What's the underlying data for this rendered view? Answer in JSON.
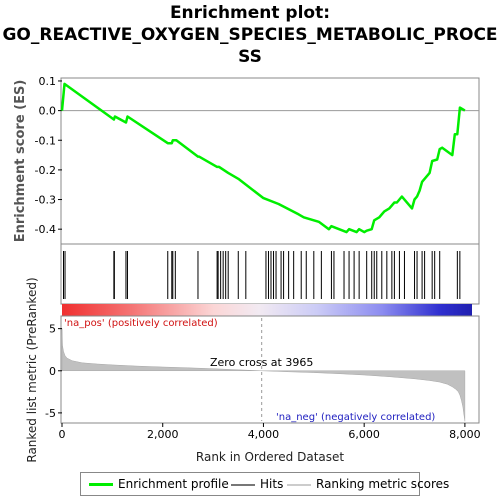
{
  "chart_data": {
    "type": "line",
    "title_lines": [
      "Enrichment plot:",
      "GO_REACTIVE_OXYGEN_SPECIES_METABOLIC_PROCE",
      "SS"
    ],
    "es_panel": {
      "ylabel": "Enrichment score (ES)",
      "ylim": [
        -0.45,
        0.11
      ],
      "yticks": [
        0.1,
        0.0,
        -0.1,
        -0.2,
        -0.3,
        -0.4
      ],
      "ytick_labels": [
        "0.1",
        "0.0",
        "-0.1",
        "-0.2",
        "-0.3",
        "-0.4"
      ],
      "series": [
        {
          "name": "Enrichment profile",
          "color": "#00ee00",
          "x": [
            0,
            50,
            1030,
            1050,
            1270,
            1300,
            2100,
            2180,
            2200,
            2270,
            2700,
            2720,
            3080,
            3120,
            3300,
            3500,
            4000,
            4300,
            4700,
            4800,
            5100,
            5300,
            5350,
            5650,
            5700,
            5850,
            5900,
            6000,
            6050,
            6150,
            6200,
            6300,
            6400,
            6500,
            6600,
            6650,
            6700,
            6750,
            6950,
            7000,
            7050,
            7100,
            7150,
            7300,
            7350,
            7450,
            7500,
            7550,
            7750,
            7800,
            7850,
            7900,
            8000
          ],
          "y": [
            0.0,
            0.09,
            -0.03,
            -0.02,
            -0.04,
            -0.02,
            -0.11,
            -0.11,
            -0.1,
            -0.1,
            -0.155,
            -0.155,
            -0.19,
            -0.19,
            -0.21,
            -0.23,
            -0.295,
            -0.315,
            -0.35,
            -0.36,
            -0.375,
            -0.4,
            -0.39,
            -0.41,
            -0.4,
            -0.41,
            -0.4,
            -0.41,
            -0.405,
            -0.4,
            -0.37,
            -0.36,
            -0.34,
            -0.33,
            -0.31,
            -0.31,
            -0.3,
            -0.29,
            -0.33,
            -0.3,
            -0.29,
            -0.27,
            -0.24,
            -0.21,
            -0.17,
            -0.165,
            -0.13,
            -0.125,
            -0.15,
            -0.08,
            -0.08,
            0.01,
            0.0
          ]
        }
      ]
    },
    "hits_panel": {
      "name": "Hits",
      "positions": [
        30,
        60,
        1030,
        1040,
        1270,
        1300,
        2100,
        2180,
        2200,
        2250,
        2700,
        3080,
        3100,
        3150,
        3200,
        3250,
        3300,
        3500,
        3650,
        4050,
        4100,
        4150,
        4200,
        4250,
        4350,
        4400,
        4500,
        4600,
        4750,
        4850,
        5000,
        5150,
        5350,
        5400,
        5600,
        5700,
        5800,
        5900,
        6050,
        6150,
        6200,
        6250,
        6350,
        6450,
        6550,
        6600,
        6700,
        6800,
        7000,
        7050,
        7150,
        7200,
        7350,
        7400,
        7500,
        7850,
        7900
      ]
    },
    "color_bar": {
      "pos_label": "'na_pos' (positively correlated)",
      "neg_label": "'na_neg' (negatively correlated)"
    },
    "metric_panel": {
      "name": "Ranking metric scores",
      "ylabel": "Ranked list metric (PreRanked)",
      "ylim": [
        -6.2,
        6.5
      ],
      "yticks": [
        5,
        0,
        -5
      ],
      "ytick_labels": [
        "5",
        "0",
        "-5"
      ],
      "zero_cross": 3965,
      "zero_cross_label": "Zero cross at 3965",
      "profile_x": [
        0,
        10,
        30,
        60,
        100,
        200,
        400,
        700,
        1000,
        1500,
        2000,
        2500,
        3000,
        3500,
        3965,
        4500,
        5000,
        5500,
        6000,
        6500,
        7000,
        7300,
        7500,
        7650,
        7750,
        7820,
        7870,
        7900,
        7930,
        7960,
        7980,
        8000
      ],
      "profile_y": [
        5.0,
        3.0,
        2.3,
        1.8,
        1.5,
        1.2,
        0.95,
        0.8,
        0.7,
        0.55,
        0.45,
        0.35,
        0.25,
        0.12,
        0.0,
        -0.12,
        -0.22,
        -0.35,
        -0.5,
        -0.7,
        -0.95,
        -1.15,
        -1.35,
        -1.6,
        -1.9,
        -2.2,
        -2.5,
        -2.9,
        -3.5,
        -4.3,
        -5.2,
        -6.0
      ]
    },
    "xaxis": {
      "xlabel": "Rank in Ordered Dataset",
      "xlim": [
        0,
        8300
      ],
      "xticks": [
        0,
        2000,
        4000,
        6000,
        8000
      ],
      "xtick_labels": [
        "0",
        "2,000",
        "4,000",
        "6,000",
        "8,000"
      ]
    },
    "legend": {
      "items": [
        {
          "label": "Enrichment profile",
          "color": "#00ee00"
        },
        {
          "label": "Hits",
          "color": "#777777"
        },
        {
          "label": "Ranking metric scores",
          "color": "#cccccc"
        }
      ]
    }
  }
}
